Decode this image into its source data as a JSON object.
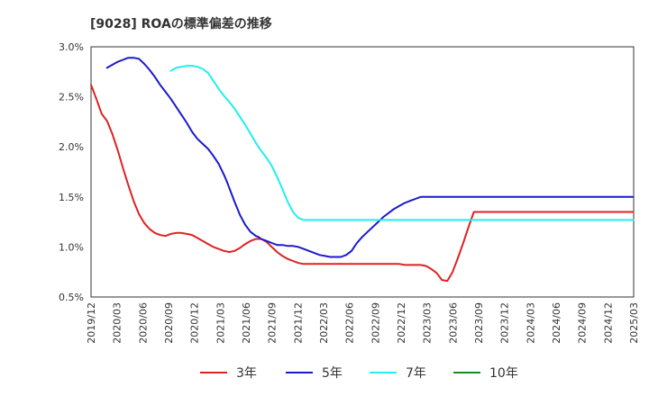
{
  "chart_data": {
    "type": "line",
    "title": "[9028]  ROAの標準偏差の推移",
    "xlabel": "",
    "ylabel": "",
    "ylim": [
      0.005,
      0.03
    ],
    "y_ticks": [
      0.005,
      0.01,
      0.015,
      0.02,
      0.025,
      0.03
    ],
    "y_tick_labels": [
      "0.5%",
      "1.0%",
      "1.5%",
      "2.0%",
      "2.5%",
      "3.0%"
    ],
    "x_tick_labels": [
      "2019/12",
      "2020/03",
      "2020/06",
      "2020/09",
      "2020/12",
      "2021/03",
      "2021/06",
      "2021/09",
      "2021/12",
      "2022/03",
      "2022/06",
      "2022/09",
      "2022/12",
      "2023/03",
      "2023/06",
      "2023/09",
      "2023/12",
      "2024/03",
      "2024/06",
      "2024/09",
      "2024/12",
      "2025/03"
    ],
    "x_range_months": [
      0,
      63
    ],
    "grid": true,
    "legend_position": "bottom",
    "series": [
      {
        "name": "3年",
        "color": "#dd2222",
        "x": [
          0,
          2,
          4,
          6,
          8,
          9,
          10,
          12,
          14,
          16,
          18,
          20,
          22,
          24,
          26,
          28,
          30,
          32,
          34,
          36,
          38,
          40,
          42,
          44,
          46,
          48,
          50,
          52,
          54,
          56,
          58,
          60,
          62,
          63,
          64,
          66,
          68,
          70,
          72,
          74,
          76,
          78,
          80,
          82,
          84,
          86,
          88,
          90,
          91,
          92,
          94,
          96,
          98,
          100,
          102,
          104,
          106,
          108,
          110,
          112,
          114,
          116,
          118,
          120,
          122,
          124,
          126,
          128,
          130,
          132,
          134,
          136,
          138,
          140,
          142,
          144,
          146,
          148,
          150,
          152,
          154,
          156,
          158,
          160,
          162,
          164,
          166,
          168,
          170,
          172,
          174,
          176,
          178,
          180,
          182,
          184,
          186,
          188,
          190,
          192,
          194,
          196,
          198,
          200,
          202,
          204
        ],
        "values": [
          0.0262,
          0.0248,
          0.0233,
          0.0226,
          0.0213,
          0.0205,
          0.0197,
          0.0179,
          0.0162,
          0.0146,
          0.0133,
          0.0124,
          0.0118,
          0.0114,
          0.0112,
          0.0111,
          0.0113,
          0.0114,
          0.0114,
          0.0113,
          0.0112,
          0.0109,
          0.0106,
          0.0103,
          0.01,
          0.0098,
          0.0096,
          0.0095,
          0.0096,
          0.0099,
          0.0103,
          0.0106,
          0.0108,
          0.0108,
          0.0108,
          0.0105,
          0.01,
          0.0095,
          0.0091,
          0.0088,
          0.0086,
          0.0084,
          0.0083,
          0.0083,
          0.0083,
          0.0083,
          0.0083,
          0.0083,
          0.0083,
          0.0083,
          0.0083,
          0.0083,
          0.0083,
          0.0083,
          0.0083,
          0.0083,
          0.0083,
          0.0083,
          0.0083,
          0.0083,
          0.0083,
          0.0083,
          0.0082,
          0.0082,
          0.0082,
          0.0082,
          0.0081,
          0.0078,
          0.0074,
          0.0067,
          0.0066,
          0.0075,
          0.0089,
          0.0104,
          0.012,
          0.0135,
          0.0135,
          0.0135,
          0.0135,
          0.0135,
          0.0135,
          0.0135,
          0.0135,
          0.0135,
          0.0135,
          0.0135,
          0.0135,
          0.0135,
          0.0135,
          0.0135,
          0.0135,
          0.0135,
          0.0135,
          0.0135,
          0.0135,
          0.0135,
          0.0135,
          0.0135,
          0.0135,
          0.0135,
          0.0135,
          0.0135,
          0.0135,
          0.0135,
          0.0135,
          0.0135
        ]
      },
      {
        "name": "5年",
        "color": "#1a1acc",
        "x": [
          6,
          8,
          10,
          12,
          13,
          14,
          15,
          16,
          18,
          20,
          22,
          24,
          26,
          28,
          30,
          32,
          34,
          36,
          38,
          40,
          42,
          44,
          46,
          48,
          50,
          51,
          52,
          54,
          56,
          58,
          60,
          62,
          63,
          64,
          65,
          66,
          68,
          70,
          72,
          74,
          76,
          78,
          80,
          82,
          84,
          86,
          88,
          90,
          92,
          94,
          96,
          98,
          100,
          102,
          104,
          106,
          108,
          110,
          112,
          114,
          116,
          118,
          120,
          122,
          124,
          126,
          128,
          130,
          132,
          134,
          136,
          138,
          140,
          142,
          144,
          146,
          148,
          150,
          152,
          154,
          156,
          158,
          160,
          162,
          164,
          166,
          168,
          170,
          172,
          174,
          176,
          178,
          180,
          182,
          184,
          186,
          188,
          190,
          192,
          194,
          196,
          198,
          200,
          202,
          204
        ],
        "values": [
          0.0279,
          0.0282,
          0.0285,
          0.0287,
          0.0288,
          0.0289,
          0.0289,
          0.0289,
          0.0288,
          0.0283,
          0.0277,
          0.027,
          0.0262,
          0.0255,
          0.0248,
          0.024,
          0.0232,
          0.0224,
          0.0215,
          0.0208,
          0.0203,
          0.0198,
          0.0191,
          0.0183,
          0.0172,
          0.0166,
          0.0159,
          0.0145,
          0.0132,
          0.0122,
          0.0115,
          0.0111,
          0.011,
          0.0108,
          0.0107,
          0.0106,
          0.0104,
          0.0102,
          0.0102,
          0.0101,
          0.0101,
          0.01,
          0.0098,
          0.0096,
          0.0094,
          0.0092,
          0.0091,
          0.009,
          0.009,
          0.009,
          0.0092,
          0.0096,
          0.0104,
          0.011,
          0.0115,
          0.012,
          0.0125,
          0.013,
          0.0134,
          0.0138,
          0.0141,
          0.0144,
          0.0146,
          0.0148,
          0.015,
          0.015,
          0.015,
          0.015,
          0.015,
          0.015,
          0.015,
          0.015,
          0.015,
          0.015,
          0.015,
          0.015,
          0.015,
          0.015,
          0.015,
          0.015,
          0.015,
          0.015,
          0.015,
          0.015,
          0.015,
          0.015,
          0.015,
          0.015,
          0.015,
          0.015,
          0.015,
          0.015,
          0.015,
          0.015,
          0.015,
          0.015,
          0.015,
          0.015,
          0.015,
          0.015,
          0.015,
          0.015,
          0.015,
          0.015,
          0.015
        ]
      },
      {
        "name": "7年",
        "color": "#22eeee",
        "x": [
          30,
          32,
          34,
          36,
          38,
          40,
          42,
          44,
          46,
          48,
          50,
          52,
          54,
          56,
          58,
          60,
          62,
          64,
          66,
          68,
          70,
          72,
          74,
          76,
          78,
          80,
          82,
          84,
          86,
          88,
          90,
          92,
          94,
          96,
          98,
          100,
          102,
          104,
          106,
          108,
          110,
          112,
          114,
          116,
          118,
          120,
          122,
          124,
          126,
          128,
          130,
          132,
          134,
          136,
          138,
          140,
          142,
          144,
          146,
          148,
          150,
          152,
          154,
          156,
          158,
          160,
          162,
          164,
          166,
          168,
          170,
          172,
          174,
          176,
          178,
          180,
          182,
          184,
          186,
          188,
          190,
          192,
          194,
          196,
          198,
          200,
          202,
          204
        ],
        "values": [
          0.0276,
          0.0279,
          0.028,
          0.0281,
          0.0281,
          0.028,
          0.0278,
          0.0274,
          0.0266,
          0.0258,
          0.0251,
          0.0245,
          0.0238,
          0.023,
          0.0222,
          0.0213,
          0.0204,
          0.0196,
          0.0189,
          0.0181,
          0.017,
          0.0158,
          0.0145,
          0.0135,
          0.0129,
          0.0127,
          0.0127,
          0.0127,
          0.0127,
          0.0127,
          0.0127,
          0.0127,
          0.0127,
          0.0127,
          0.0127,
          0.0127,
          0.0127,
          0.0127,
          0.0127,
          0.0127,
          0.0127,
          0.0127,
          0.0127,
          0.0127,
          0.0127,
          0.0127,
          0.0127,
          0.0127,
          0.0127,
          0.0127,
          0.0127,
          0.0127,
          0.0127,
          0.0127,
          0.0127,
          0.0127,
          0.0127,
          0.0127,
          0.0127,
          0.0127,
          0.0127,
          0.0127,
          0.0127,
          0.0127,
          0.0127,
          0.0127,
          0.0127,
          0.0127,
          0.0127,
          0.0127,
          0.0127,
          0.0127,
          0.0127,
          0.0127,
          0.0127,
          0.0127,
          0.0127,
          0.0127,
          0.0127,
          0.0127,
          0.0127,
          0.0127,
          0.0127,
          0.0127,
          0.0127,
          0.0127,
          0.0127,
          0.0127
        ]
      },
      {
        "name": "10年",
        "color": "#1a8a1a",
        "x": [],
        "values": []
      }
    ]
  }
}
